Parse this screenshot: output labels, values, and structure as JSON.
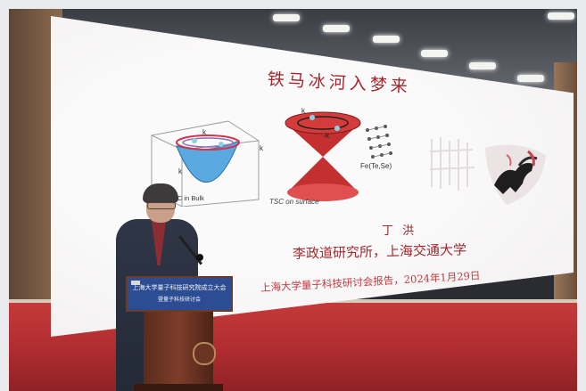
{
  "slide": {
    "title": "铁马冰河入梦来",
    "figure_labels": {
      "k_top": "k",
      "k_right": "k",
      "k_left": "k",
      "bulk_caption": "al SC in Bulk",
      "cone_k": "k",
      "cone_minus_k": "-k",
      "material": "Fe(Te,Se)",
      "surface_caption": "TSC on surface"
    },
    "speaker_name": "丁 洪",
    "affiliation": "李政道研究所，上海交通大学",
    "event": "上海大学量子科技研讨会报告，2024年1月29日"
  },
  "podium": {
    "line1": "上海大学量子科技研究院成立大会",
    "line2": "暨量子科技研讨会"
  },
  "colors": {
    "slide_text": "#a4272d",
    "podium_banner": "#2c4d93",
    "carpet": "#b12d30"
  }
}
